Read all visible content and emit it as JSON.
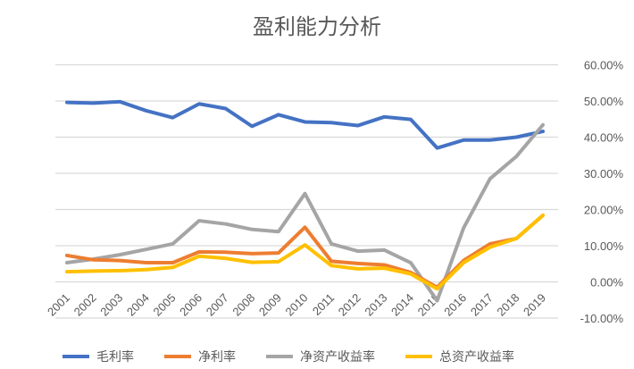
{
  "chart_data": {
    "type": "line",
    "title": "盈利能力分析",
    "x": [
      "2001",
      "2002",
      "2003",
      "2004",
      "2005",
      "2006",
      "2007",
      "2008",
      "2009",
      "2010",
      "2011",
      "2012",
      "2013",
      "2014",
      "2015",
      "2016",
      "2017",
      "2018",
      "2019"
    ],
    "series": [
      {
        "name": "毛利率",
        "color": "#4472C4",
        "values": [
          49.6,
          49.4,
          49.8,
          47.3,
          45.4,
          49.2,
          47.9,
          43.0,
          46.2,
          44.2,
          44.0,
          43.2,
          45.6,
          44.9,
          37.0,
          39.2,
          39.2,
          40.0,
          41.6
        ]
      },
      {
        "name": "净利率",
        "color": "#ED7D31",
        "values": [
          7.3,
          6.1,
          5.9,
          5.3,
          5.3,
          8.3,
          8.2,
          7.8,
          8.0,
          15.1,
          5.7,
          5.1,
          4.7,
          2.6,
          -1.5,
          5.9,
          10.5,
          12.0,
          18.4
        ]
      },
      {
        "name": "净资产收益率",
        "color": "#A5A5A5",
        "values": [
          5.3,
          6.3,
          7.5,
          9.0,
          10.5,
          16.9,
          16.0,
          14.5,
          13.9,
          24.4,
          10.5,
          8.5,
          8.8,
          5.3,
          -5.2,
          14.9,
          28.5,
          34.7,
          43.4
        ]
      },
      {
        "name": "总资产收益率",
        "color": "#FFC000",
        "values": [
          2.8,
          3.0,
          3.1,
          3.4,
          4.0,
          7.1,
          6.5,
          5.4,
          5.6,
          10.2,
          4.5,
          3.6,
          3.8,
          2.2,
          -1.9,
          5.3,
          9.6,
          12.0,
          18.4
        ]
      }
    ],
    "yticks": [
      "-10.00%",
      "0.00%",
      "10.00%",
      "20.00%",
      "30.00%",
      "40.00%",
      "50.00%",
      "60.00%"
    ],
    "ylim": [
      -10,
      60
    ],
    "yaxis_position": "right",
    "grid": true,
    "legend_position": "bottom"
  }
}
